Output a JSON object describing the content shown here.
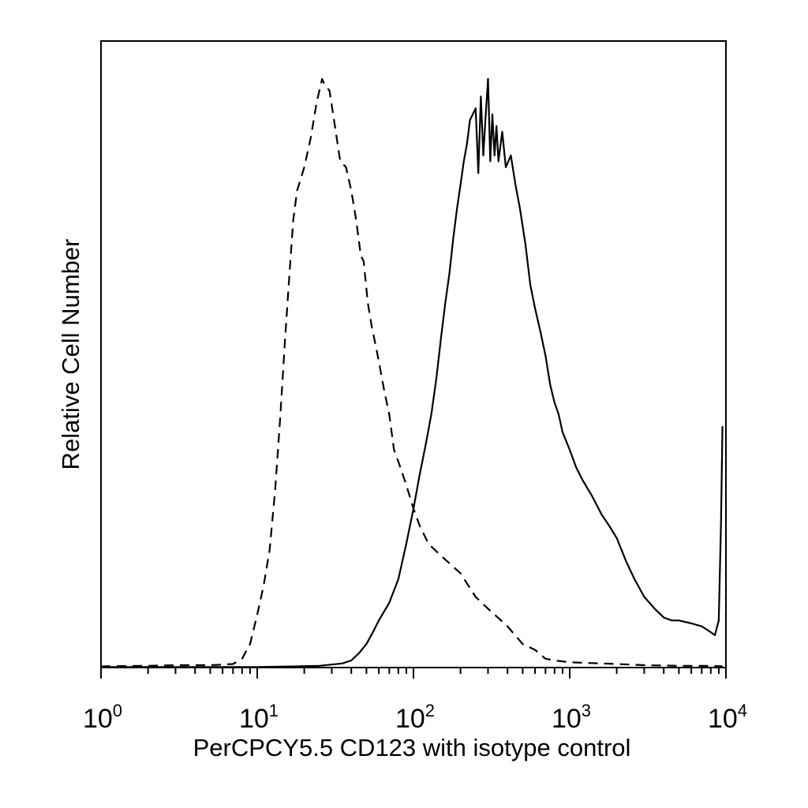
{
  "chart_data": {
    "type": "line",
    "title": "",
    "xlabel": "PerCPCY5.5 CD123 with isotype control",
    "ylabel": "Relative Cell Number",
    "xscale": "log",
    "xlim": [
      1,
      10000
    ],
    "ylim": [
      0,
      100
    ],
    "grid": false,
    "legend": "none",
    "x_ticks": [
      {
        "base": "10",
        "exp": "0",
        "value": 1
      },
      {
        "base": "10",
        "exp": "1",
        "value": 10
      },
      {
        "base": "10",
        "exp": "2",
        "value": 100
      },
      {
        "base": "10",
        "exp": "3",
        "value": 1000
      },
      {
        "base": "10",
        "exp": "4",
        "value": 10000
      }
    ],
    "series": [
      {
        "style": "dashed",
        "color": "#000000",
        "points": [
          [
            1,
            0.2
          ],
          [
            2,
            0.3
          ],
          [
            3,
            0.4
          ],
          [
            5,
            0.4
          ],
          [
            7,
            0.6
          ],
          [
            8,
            1.5
          ],
          [
            9,
            4
          ],
          [
            10,
            9
          ],
          [
            11,
            14
          ],
          [
            12,
            20
          ],
          [
            13,
            30
          ],
          [
            14,
            42
          ],
          [
            15,
            55
          ],
          [
            16,
            66
          ],
          [
            17,
            76
          ],
          [
            18,
            81
          ],
          [
            20,
            85
          ],
          [
            22,
            90
          ],
          [
            24,
            96
          ],
          [
            26,
            100
          ],
          [
            27,
            99
          ],
          [
            29,
            98
          ],
          [
            31,
            93
          ],
          [
            34,
            86
          ],
          [
            37,
            85
          ],
          [
            40,
            81
          ],
          [
            43,
            76
          ],
          [
            46,
            70
          ],
          [
            48,
            69
          ],
          [
            51,
            62
          ],
          [
            54,
            58
          ],
          [
            57,
            55
          ],
          [
            60,
            52
          ],
          [
            65,
            47
          ],
          [
            70,
            43
          ],
          [
            75,
            37
          ],
          [
            80,
            35
          ],
          [
            90,
            31
          ],
          [
            100,
            27
          ],
          [
            110,
            24
          ],
          [
            125,
            21
          ],
          [
            150,
            19
          ],
          [
            200,
            16
          ],
          [
            250,
            12
          ],
          [
            300,
            10
          ],
          [
            400,
            7
          ],
          [
            500,
            4
          ],
          [
            600,
            3
          ],
          [
            700,
            1.5
          ],
          [
            800,
            1.2
          ],
          [
            1000,
            0.9
          ],
          [
            2000,
            0.6
          ],
          [
            3000,
            0.4
          ],
          [
            5000,
            0.3
          ],
          [
            8000,
            0.3
          ],
          [
            9500,
            0.2
          ]
        ]
      },
      {
        "style": "solid",
        "color": "#000000",
        "points": [
          [
            1,
            0.1
          ],
          [
            5,
            0.1
          ],
          [
            10,
            0.1
          ],
          [
            18,
            0.2
          ],
          [
            25,
            0.3
          ],
          [
            35,
            0.7
          ],
          [
            40,
            1.2
          ],
          [
            45,
            2.5
          ],
          [
            50,
            4
          ],
          [
            55,
            6
          ],
          [
            60,
            8
          ],
          [
            70,
            11
          ],
          [
            80,
            15
          ],
          [
            90,
            21
          ],
          [
            100,
            27
          ],
          [
            110,
            33
          ],
          [
            120,
            38
          ],
          [
            130,
            43
          ],
          [
            140,
            49
          ],
          [
            150,
            56
          ],
          [
            160,
            62
          ],
          [
            170,
            67
          ],
          [
            180,
            73
          ],
          [
            190,
            78
          ],
          [
            200,
            82
          ],
          [
            210,
            86
          ],
          [
            220,
            89
          ],
          [
            230,
            93
          ],
          [
            250,
            95
          ],
          [
            260,
            84
          ],
          [
            270,
            97
          ],
          [
            280,
            87
          ],
          [
            290,
            94
          ],
          [
            300,
            100
          ],
          [
            310,
            86
          ],
          [
            320,
            94
          ],
          [
            330,
            87
          ],
          [
            340,
            92
          ],
          [
            350,
            86
          ],
          [
            370,
            91
          ],
          [
            390,
            85
          ],
          [
            420,
            87
          ],
          [
            450,
            82
          ],
          [
            480,
            78
          ],
          [
            520,
            72
          ],
          [
            560,
            65
          ],
          [
            600,
            61
          ],
          [
            650,
            57
          ],
          [
            700,
            53
          ],
          [
            750,
            48
          ],
          [
            800,
            45
          ],
          [
            850,
            43
          ],
          [
            900,
            40
          ],
          [
            1000,
            37
          ],
          [
            1100,
            34
          ],
          [
            1200,
            32
          ],
          [
            1400,
            29
          ],
          [
            1600,
            26
          ],
          [
            1800,
            24
          ],
          [
            2000,
            22
          ],
          [
            2300,
            18
          ],
          [
            2600,
            15
          ],
          [
            3000,
            12
          ],
          [
            3500,
            10
          ],
          [
            4000,
            8.5
          ],
          [
            4500,
            8
          ],
          [
            5000,
            8
          ],
          [
            6000,
            7.5
          ],
          [
            7000,
            7
          ],
          [
            8000,
            6
          ],
          [
            8500,
            5.5
          ],
          [
            9000,
            8
          ],
          [
            9300,
            25
          ],
          [
            9500,
            41
          ]
        ]
      }
    ]
  }
}
